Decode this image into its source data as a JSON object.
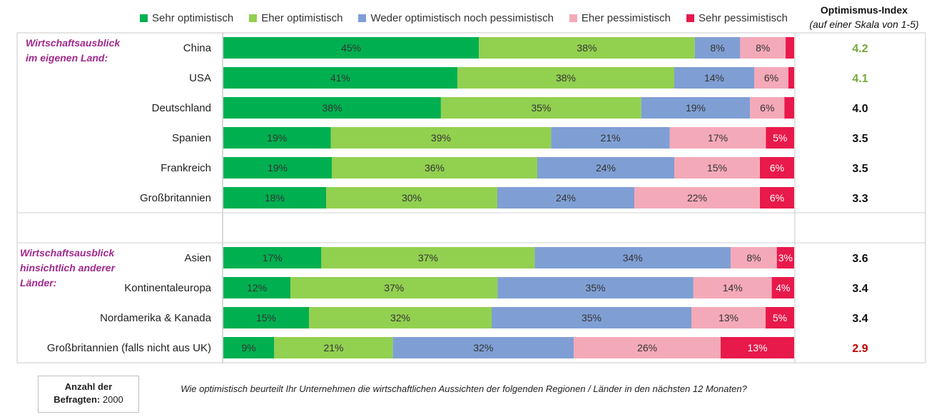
{
  "legend": [
    {
      "label": "Sehr optimistisch",
      "color": "#00b050"
    },
    {
      "label": "Eher optimistisch",
      "color": "#92d050"
    },
    {
      "label": "Weder optimistisch noch pessimistisch",
      "color": "#7f9fd4"
    },
    {
      "label": "Eher pessimistisch",
      "color": "#f4a9b8"
    },
    {
      "label": "Sehr pessimistisch",
      "color": "#e8194b"
    }
  ],
  "index_header": {
    "title": "Optimismus-Index",
    "subtitle": "(auf einer Skala von 1-5)"
  },
  "group_labels": [
    {
      "line1": "Wirtschaftsausblick",
      "line2": "im eigenen Land:",
      "line3": ""
    },
    {
      "line1": "Wirtschaftsausblick",
      "line2": "hinsichtlich anderer",
      "line3": "Länder:"
    }
  ],
  "chart_data": {
    "type": "bar",
    "orientation": "horizontal",
    "stacked": true,
    "series_names": [
      "Sehr optimistisch",
      "Eher optimistisch",
      "Weder optimistisch noch pessimistisch",
      "Eher pessimistisch",
      "Sehr pessimistisch"
    ],
    "groups": [
      {
        "rows": [
          {
            "category": "China",
            "values": [
              45,
              38,
              8,
              8,
              1.5
            ],
            "labels": [
              "45%",
              "38%",
              "8%",
              "8%",
              ""
            ],
            "index": "4.2",
            "index_color": "#76a83a"
          },
          {
            "category": "USA",
            "values": [
              41,
              38,
              14,
              6,
              1
            ],
            "labels": [
              "41%",
              "38%",
              "14%",
              "6%",
              ""
            ],
            "index": "4.1",
            "index_color": "#76a83a"
          },
          {
            "category": "Deutschland",
            "values": [
              38,
              35,
              19,
              6,
              1.7
            ],
            "labels": [
              "38%",
              "35%",
              "19%",
              "6%",
              ""
            ],
            "index": "4.0",
            "index_color": "#111111"
          },
          {
            "category": "Spanien",
            "values": [
              19,
              39,
              21,
              17,
              5
            ],
            "labels": [
              "19%",
              "39%",
              "21%",
              "17%",
              "5%"
            ],
            "index": "3.5",
            "index_color": "#111111"
          },
          {
            "category": "Frankreich",
            "values": [
              19,
              36,
              24,
              15,
              6
            ],
            "labels": [
              "19%",
              "36%",
              "24%",
              "15%",
              "6%"
            ],
            "index": "3.5",
            "index_color": "#111111"
          },
          {
            "category": "Großbritannien",
            "values": [
              18,
              30,
              24,
              22,
              6
            ],
            "labels": [
              "18%",
              "30%",
              "24%",
              "22%",
              "6%"
            ],
            "index": "3.3",
            "index_color": "#111111"
          }
        ]
      },
      {
        "rows": [
          {
            "category": "Asien",
            "values": [
              17,
              37,
              34,
              8,
              3
            ],
            "labels": [
              "17%",
              "37%",
              "34%",
              "8%",
              "3%"
            ],
            "index": "3.6",
            "index_color": "#111111"
          },
          {
            "category": "Kontinentaleuropa",
            "values": [
              12,
              37,
              35,
              14,
              4
            ],
            "labels": [
              "12%",
              "37%",
              "35%",
              "14%",
              "4%"
            ],
            "index": "3.4",
            "index_color": "#111111"
          },
          {
            "category": "Nordamerika & Kanada",
            "values": [
              15,
              32,
              35,
              13,
              5
            ],
            "labels": [
              "15%",
              "32%",
              "35%",
              "13%",
              "5%"
            ],
            "index": "3.4",
            "index_color": "#111111"
          },
          {
            "category": "Großbritannien (falls nicht aus UK)",
            "values": [
              9,
              21,
              32,
              26,
              13
            ],
            "labels": [
              "9%",
              "21%",
              "32%",
              "26%",
              "13%"
            ],
            "index": "2.9",
            "index_color": "#c00000"
          }
        ]
      }
    ]
  },
  "footer": {
    "sample_label": "Anzahl der",
    "sample_label2": "Befragten:",
    "sample_value": "2000",
    "question": "Wie optimistisch beurteilt Ihr Unternehmen die wirtschaftlichen Aussichten der folgenden Regionen / Länder in den nächsten 12 Monaten?"
  }
}
